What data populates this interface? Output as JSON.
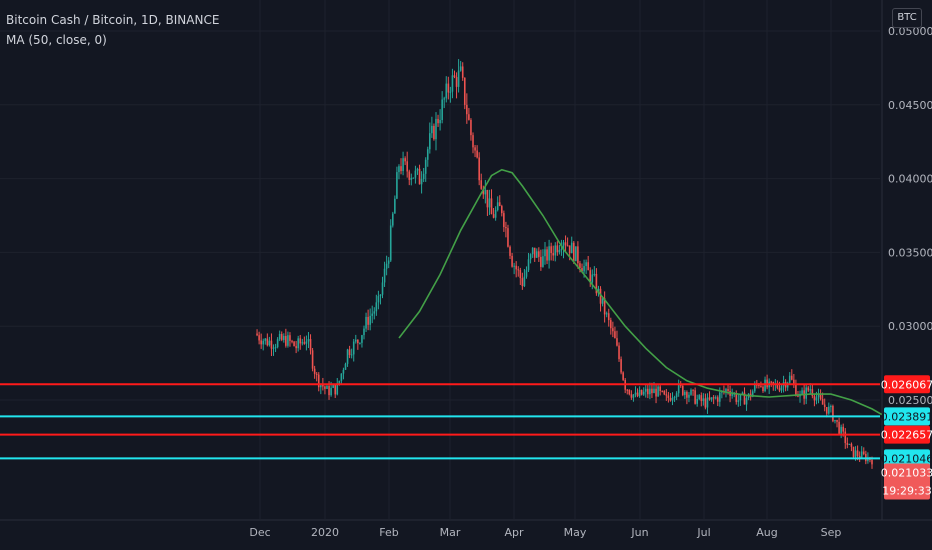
{
  "header": {
    "symbol_line": "Bitcoin Cash / Bitcoin, 1D, BINANCE",
    "indicator_line": "MA (50, close, 0)"
  },
  "currency_button": "BTC",
  "countdown": "19:29:33",
  "colors": {
    "background": "#131722",
    "up": "#26a69a",
    "down": "#ef5350",
    "ma": "#43a047",
    "red_level": "#ff1a1a",
    "cyan_level": "#21e6ee"
  },
  "chart_data": {
    "type": "candlestick",
    "title": "Bitcoin Cash / Bitcoin, 1D, BINANCE",
    "y_ticks": [
      "0.050000",
      "0.045000",
      "0.040000",
      "0.035000",
      "0.030000",
      "0.025000"
    ],
    "ylim": [
      0.0185,
      0.0505
    ],
    "x_ticks": [
      "Dec",
      "2020",
      "Feb",
      "Mar",
      "Apr",
      "May",
      "Jun",
      "Jul",
      "Aug",
      "Sep"
    ],
    "levels": [
      {
        "value": 0.026067,
        "label": "0.026067",
        "color": "red"
      },
      {
        "value": 0.023891,
        "label": "0.023891",
        "color": "cyan"
      },
      {
        "value": 0.022657,
        "label": "0.022657",
        "color": "red"
      },
      {
        "value": 0.021046,
        "label": "0.021046",
        "color": "cyan"
      }
    ],
    "last_price": {
      "value": 0.021033,
      "label": "0.021033"
    },
    "price_path": [
      [
        0,
        0.0295
      ],
      [
        1,
        0.029
      ],
      [
        2,
        0.0289
      ],
      [
        3,
        0.0291
      ],
      [
        4,
        0.0286
      ],
      [
        5,
        0.0292
      ],
      [
        6,
        0.0265
      ],
      [
        7,
        0.0256
      ],
      [
        8,
        0.0258
      ],
      [
        9,
        0.0283
      ],
      [
        10,
        0.029
      ],
      [
        11,
        0.0305
      ],
      [
        12,
        0.0315
      ],
      [
        13,
        0.035
      ],
      [
        14,
        0.041
      ],
      [
        15,
        0.0405
      ],
      [
        16,
        0.04
      ],
      [
        17,
        0.0425
      ],
      [
        18,
        0.0445
      ],
      [
        19,
        0.0465
      ],
      [
        20,
        0.047
      ],
      [
        21,
        0.043
      ],
      [
        22,
        0.04
      ],
      [
        23,
        0.0375
      ],
      [
        24,
        0.038
      ],
      [
        25,
        0.0345
      ],
      [
        26,
        0.033
      ],
      [
        27,
        0.035
      ],
      [
        28,
        0.0345
      ],
      [
        29,
        0.0352
      ],
      [
        30,
        0.036
      ],
      [
        31,
        0.035
      ],
      [
        32,
        0.034
      ],
      [
        33,
        0.033
      ],
      [
        34,
        0.031
      ],
      [
        35,
        0.029
      ],
      [
        36,
        0.026
      ],
      [
        37,
        0.0252
      ],
      [
        38,
        0.0255
      ],
      [
        39,
        0.0256
      ],
      [
        40,
        0.025
      ],
      [
        41,
        0.0258
      ],
      [
        42,
        0.0256
      ],
      [
        43,
        0.025
      ],
      [
        44,
        0.0248
      ],
      [
        45,
        0.0252
      ],
      [
        46,
        0.0258
      ],
      [
        47,
        0.025
      ],
      [
        48,
        0.0252
      ],
      [
        49,
        0.0262
      ],
      [
        50,
        0.0258
      ],
      [
        51,
        0.026
      ],
      [
        52,
        0.0265
      ],
      [
        53,
        0.0252
      ],
      [
        54,
        0.0258
      ],
      [
        55,
        0.0248
      ],
      [
        56,
        0.0242
      ],
      [
        57,
        0.0228
      ],
      [
        58,
        0.0215
      ],
      [
        59,
        0.0212
      ],
      [
        60,
        0.021
      ]
    ],
    "ma_path": [
      [
        0,
        0.0292
      ],
      [
        2,
        0.031
      ],
      [
        4,
        0.0335
      ],
      [
        6,
        0.0365
      ],
      [
        8,
        0.039
      ],
      [
        9,
        0.0402
      ],
      [
        10,
        0.0406
      ],
      [
        11,
        0.0404
      ],
      [
        12,
        0.0395
      ],
      [
        14,
        0.0375
      ],
      [
        16,
        0.0352
      ],
      [
        18,
        0.0335
      ],
      [
        20,
        0.0318
      ],
      [
        22,
        0.03
      ],
      [
        24,
        0.0285
      ],
      [
        26,
        0.0272
      ],
      [
        28,
        0.0263
      ],
      [
        30,
        0.0258
      ],
      [
        32,
        0.0255
      ],
      [
        34,
        0.0253
      ],
      [
        36,
        0.0252
      ],
      [
        38,
        0.0253
      ],
      [
        40,
        0.0254
      ],
      [
        42,
        0.0254
      ],
      [
        44,
        0.025
      ],
      [
        46,
        0.0244
      ],
      [
        47,
        0.024
      ]
    ]
  }
}
